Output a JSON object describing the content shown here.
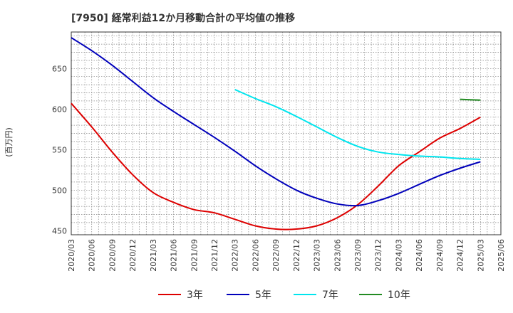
{
  "chart_data": {
    "type": "line",
    "title": "[7950]  経常利益12か月移動合計の平均値の推移",
    "ylabel": "(百万円)",
    "xlabel": "",
    "ylim": [
      445,
      695
    ],
    "yticks": [
      450,
      500,
      550,
      600,
      650
    ],
    "x_ticks": [
      "2020/03",
      "2020/06",
      "2020/09",
      "2020/12",
      "2021/03",
      "2021/06",
      "2021/09",
      "2021/12",
      "2022/03",
      "2022/06",
      "2022/09",
      "2022/12",
      "2023/03",
      "2023/06",
      "2023/09",
      "2023/12",
      "2024/03",
      "2024/06",
      "2024/09",
      "2024/12",
      "2025/03",
      "2025/06"
    ],
    "grid": true,
    "legend_position": "bottom",
    "series": [
      {
        "name": "3年",
        "color": "#dd0000",
        "points": [
          [
            "2020/03",
            607
          ],
          [
            "2020/06",
            578
          ],
          [
            "2020/09",
            547
          ],
          [
            "2020/12",
            519
          ],
          [
            "2021/03",
            497
          ],
          [
            "2021/06",
            485
          ],
          [
            "2021/09",
            476
          ],
          [
            "2021/12",
            472
          ],
          [
            "2022/03",
            464
          ],
          [
            "2022/06",
            456
          ],
          [
            "2022/09",
            452
          ],
          [
            "2022/12",
            452
          ],
          [
            "2023/03",
            456
          ],
          [
            "2023/06",
            466
          ],
          [
            "2023/09",
            482
          ],
          [
            "2023/12",
            505
          ],
          [
            "2024/03",
            530
          ],
          [
            "2024/06",
            547
          ],
          [
            "2024/09",
            564
          ],
          [
            "2024/12",
            576
          ],
          [
            "2025/03",
            590
          ]
        ]
      },
      {
        "name": "5年",
        "color": "#0000bb",
        "points": [
          [
            "2020/03",
            688
          ],
          [
            "2020/06",
            672
          ],
          [
            "2020/09",
            654
          ],
          [
            "2020/12",
            634
          ],
          [
            "2021/03",
            614
          ],
          [
            "2021/06",
            597
          ],
          [
            "2021/09",
            581
          ],
          [
            "2021/12",
            565
          ],
          [
            "2022/03",
            548
          ],
          [
            "2022/06",
            530
          ],
          [
            "2022/09",
            514
          ],
          [
            "2022/12",
            500
          ],
          [
            "2023/03",
            490
          ],
          [
            "2023/06",
            483
          ],
          [
            "2023/09",
            481
          ],
          [
            "2023/12",
            487
          ],
          [
            "2024/03",
            496
          ],
          [
            "2024/06",
            507
          ],
          [
            "2024/09",
            518
          ],
          [
            "2024/12",
            527
          ],
          [
            "2025/03",
            535
          ]
        ]
      },
      {
        "name": "7年",
        "color": "#00e5ee",
        "points": [
          [
            "2022/03",
            624
          ],
          [
            "2022/06",
            613
          ],
          [
            "2022/09",
            603
          ],
          [
            "2022/12",
            591
          ],
          [
            "2023/03",
            578
          ],
          [
            "2023/06",
            565
          ],
          [
            "2023/09",
            554
          ],
          [
            "2023/12",
            547
          ],
          [
            "2024/03",
            544
          ],
          [
            "2024/06",
            542
          ],
          [
            "2024/09",
            541
          ],
          [
            "2024/12",
            539
          ],
          [
            "2025/03",
            538
          ]
        ]
      },
      {
        "name": "10年",
        "color": "#228b22",
        "points": [
          [
            "2024/12",
            612
          ],
          [
            "2025/03",
            611
          ]
        ]
      }
    ]
  }
}
